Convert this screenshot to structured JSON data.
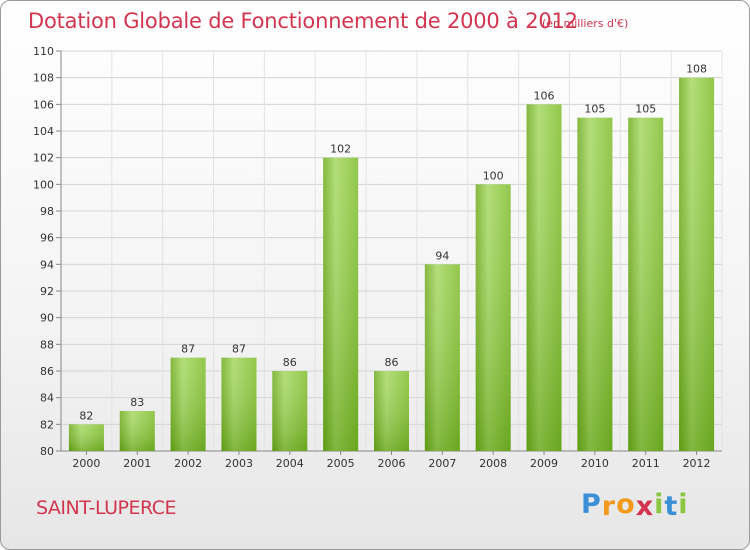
{
  "chart_data": {
    "type": "bar",
    "title": "Dotation Globale de Fonctionnement de 2000 à 2012",
    "subtitle": "(en milliers d'€)",
    "categories": [
      "2000",
      "2001",
      "2002",
      "2003",
      "2004",
      "2005",
      "2006",
      "2007",
      "2008",
      "2009",
      "2010",
      "2011",
      "2012"
    ],
    "values": [
      82,
      83,
      87,
      87,
      86,
      102,
      86,
      94,
      100,
      106,
      105,
      105,
      108
    ],
    "ylim": [
      80,
      110
    ],
    "yticks": [
      80,
      82,
      84,
      86,
      88,
      90,
      92,
      94,
      96,
      98,
      100,
      102,
      104,
      106,
      108,
      110
    ],
    "grid": true,
    "legend": "none",
    "bar_color_light": "#a6d862",
    "bar_color_dark": "#64a312"
  },
  "footer": {
    "commune": "SAINT-LUPERCE",
    "logo_letters": [
      {
        "ch": "P",
        "color": "#3a8fd6"
      },
      {
        "ch": "r",
        "color": "#f39a1e"
      },
      {
        "ch": "o",
        "color": "#f39a1e"
      },
      {
        "ch": "x",
        "color": "#d2354f"
      },
      {
        "ch": "i",
        "color": "#8cc63f"
      },
      {
        "ch": "t",
        "color": "#3a8fd6"
      },
      {
        "ch": "i",
        "color": "#8cc63f"
      }
    ]
  }
}
